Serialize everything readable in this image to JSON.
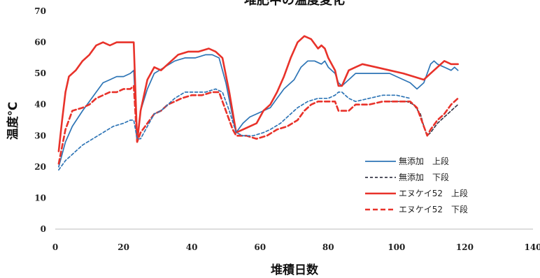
{
  "chart_data": {
    "type": "line",
    "title": "堆肥中の温度変化",
    "xlabel": "堆積日数",
    "ylabel": "温度℃",
    "xlim": [
      0,
      140
    ],
    "ylim": [
      0,
      70
    ],
    "xticks": [
      "0",
      "20",
      "40",
      "60",
      "80",
      "100",
      "120",
      "140"
    ],
    "yticks": [
      "0",
      "10",
      "20",
      "30",
      "40",
      "50",
      "60",
      "70"
    ],
    "grid": false,
    "legend_position": "right",
    "series": [
      {
        "name": "無添加　上段",
        "color": "#2e75b6",
        "dash": "solid",
        "points": [
          [
            1,
            20
          ],
          [
            3,
            28
          ],
          [
            5,
            33
          ],
          [
            8,
            38
          ],
          [
            10,
            41
          ],
          [
            12,
            44
          ],
          [
            14,
            47
          ],
          [
            16,
            48
          ],
          [
            18,
            49
          ],
          [
            20,
            49
          ],
          [
            22,
            50
          ],
          [
            23,
            51
          ],
          [
            24,
            29
          ],
          [
            25,
            38
          ],
          [
            27,
            45
          ],
          [
            29,
            50
          ],
          [
            32,
            52
          ],
          [
            35,
            54
          ],
          [
            38,
            55
          ],
          [
            41,
            55
          ],
          [
            44,
            56
          ],
          [
            46,
            56
          ],
          [
            48,
            55
          ],
          [
            50,
            47
          ],
          [
            52,
            36
          ],
          [
            53,
            31
          ],
          [
            55,
            34
          ],
          [
            57,
            36
          ],
          [
            59,
            37
          ],
          [
            61,
            38
          ],
          [
            63,
            39
          ],
          [
            65,
            42
          ],
          [
            67,
            45
          ],
          [
            70,
            48
          ],
          [
            72,
            52
          ],
          [
            74,
            54
          ],
          [
            76,
            54
          ],
          [
            78,
            53
          ],
          [
            79,
            54
          ],
          [
            80,
            52
          ],
          [
            82,
            50
          ],
          [
            83,
            47
          ],
          [
            84,
            46
          ],
          [
            86,
            48
          ],
          [
            88,
            50
          ],
          [
            90,
            50
          ],
          [
            94,
            50
          ],
          [
            98,
            50
          ],
          [
            100,
            49
          ],
          [
            104,
            47
          ],
          [
            106,
            45
          ],
          [
            108,
            47
          ],
          [
            110,
            53
          ],
          [
            111,
            54
          ],
          [
            112,
            53
          ],
          [
            114,
            52
          ],
          [
            116,
            51
          ],
          [
            117,
            52
          ],
          [
            118,
            51
          ]
        ]
      },
      {
        "name": "無添加　下段",
        "color": "#3a3a4a",
        "dash": "dashed",
        "points": [
          [
            97,
            41
          ],
          [
            100,
            41
          ],
          [
            103,
            41
          ],
          [
            105,
            40
          ],
          [
            107,
            37
          ],
          [
            108,
            33
          ],
          [
            109,
            30
          ],
          [
            110,
            31
          ],
          [
            112,
            34
          ],
          [
            114,
            36
          ],
          [
            116,
            38
          ],
          [
            118,
            40
          ]
        ]
      },
      {
        "name": "エヌケイ52　上段",
        "color": "#e8322a",
        "dash": "solid",
        "points": [
          [
            1,
            25
          ],
          [
            2,
            35
          ],
          [
            3,
            44
          ],
          [
            4,
            49
          ],
          [
            6,
            51
          ],
          [
            8,
            54
          ],
          [
            10,
            56
          ],
          [
            12,
            59
          ],
          [
            14,
            60
          ],
          [
            16,
            59
          ],
          [
            18,
            60
          ],
          [
            20,
            60
          ],
          [
            22,
            60
          ],
          [
            23,
            60
          ],
          [
            24,
            28
          ],
          [
            25,
            38
          ],
          [
            27,
            48
          ],
          [
            29,
            52
          ],
          [
            31,
            51
          ],
          [
            33,
            53
          ],
          [
            36,
            56
          ],
          [
            39,
            57
          ],
          [
            42,
            57
          ],
          [
            45,
            58
          ],
          [
            47,
            57
          ],
          [
            49,
            55
          ],
          [
            51,
            44
          ],
          [
            53,
            31
          ],
          [
            55,
            32
          ],
          [
            57,
            33
          ],
          [
            59,
            34
          ],
          [
            61,
            38
          ],
          [
            63,
            40
          ],
          [
            65,
            44
          ],
          [
            67,
            49
          ],
          [
            69,
            55
          ],
          [
            71,
            60
          ],
          [
            73,
            62
          ],
          [
            75,
            61
          ],
          [
            77,
            58
          ],
          [
            78,
            59
          ],
          [
            79,
            58
          ],
          [
            80,
            55
          ],
          [
            82,
            51
          ],
          [
            83,
            46
          ],
          [
            84,
            46
          ],
          [
            86,
            51
          ],
          [
            88,
            52
          ],
          [
            90,
            53
          ],
          [
            94,
            52
          ],
          [
            98,
            51
          ],
          [
            102,
            50
          ],
          [
            105,
            49
          ],
          [
            108,
            48
          ],
          [
            110,
            50
          ],
          [
            112,
            52
          ],
          [
            114,
            54
          ],
          [
            116,
            53
          ],
          [
            118,
            53
          ]
        ]
      },
      {
        "name": "エヌケイ52　下段",
        "color": "#e8322a",
        "dash": "dashed",
        "points": [
          [
            1,
            21
          ],
          [
            3,
            32
          ],
          [
            5,
            38
          ],
          [
            8,
            39
          ],
          [
            10,
            40
          ],
          [
            12,
            42
          ],
          [
            14,
            43
          ],
          [
            16,
            44
          ],
          [
            18,
            44
          ],
          [
            20,
            45
          ],
          [
            22,
            45
          ],
          [
            23,
            46
          ],
          [
            24,
            28
          ],
          [
            25,
            31
          ],
          [
            27,
            34
          ],
          [
            29,
            37
          ],
          [
            31,
            38
          ],
          [
            33,
            40
          ],
          [
            35,
            41
          ],
          [
            37,
            42
          ],
          [
            40,
            43
          ],
          [
            43,
            43
          ],
          [
            46,
            44
          ],
          [
            48,
            44
          ],
          [
            50,
            38
          ],
          [
            52,
            32
          ],
          [
            53,
            30
          ],
          [
            56,
            30
          ],
          [
            59,
            29
          ],
          [
            62,
            30
          ],
          [
            65,
            32
          ],
          [
            68,
            33
          ],
          [
            71,
            35
          ],
          [
            73,
            38
          ],
          [
            75,
            40
          ],
          [
            77,
            41
          ],
          [
            80,
            41
          ],
          [
            82,
            41
          ],
          [
            83,
            38
          ],
          [
            84,
            38
          ],
          [
            86,
            38
          ],
          [
            88,
            40
          ],
          [
            92,
            40
          ],
          [
            96,
            41
          ],
          [
            100,
            41
          ],
          [
            104,
            41
          ],
          [
            106,
            39
          ],
          [
            107,
            36
          ],
          [
            108,
            33
          ],
          [
            109,
            30
          ],
          [
            110,
            32
          ],
          [
            112,
            35
          ],
          [
            114,
            37
          ],
          [
            116,
            40
          ],
          [
            118,
            42
          ]
        ]
      },
      {
        "name": "",
        "color": "#2e75b6",
        "dash": "dashed",
        "points": [
          [
            1,
            19
          ],
          [
            3,
            22
          ],
          [
            5,
            24
          ],
          [
            8,
            27
          ],
          [
            11,
            29
          ],
          [
            14,
            31
          ],
          [
            17,
            33
          ],
          [
            20,
            34
          ],
          [
            22,
            35
          ],
          [
            23,
            35
          ],
          [
            24,
            29
          ],
          [
            25,
            29
          ],
          [
            27,
            33
          ],
          [
            29,
            37
          ],
          [
            31,
            38
          ],
          [
            33,
            40
          ],
          [
            35,
            42
          ],
          [
            38,
            44
          ],
          [
            41,
            44
          ],
          [
            44,
            44
          ],
          [
            47,
            45
          ],
          [
            49,
            44
          ],
          [
            51,
            38
          ],
          [
            53,
            31
          ],
          [
            55,
            30
          ],
          [
            58,
            30
          ],
          [
            61,
            31
          ],
          [
            63,
            32
          ],
          [
            66,
            34
          ],
          [
            69,
            37
          ],
          [
            71,
            39
          ],
          [
            74,
            41
          ],
          [
            77,
            42
          ],
          [
            80,
            42
          ],
          [
            82,
            43
          ],
          [
            83,
            44
          ],
          [
            84,
            44
          ],
          [
            86,
            42
          ],
          [
            88,
            41
          ],
          [
            92,
            42
          ],
          [
            96,
            43
          ],
          [
            100,
            43
          ],
          [
            104,
            42
          ]
        ]
      }
    ]
  }
}
